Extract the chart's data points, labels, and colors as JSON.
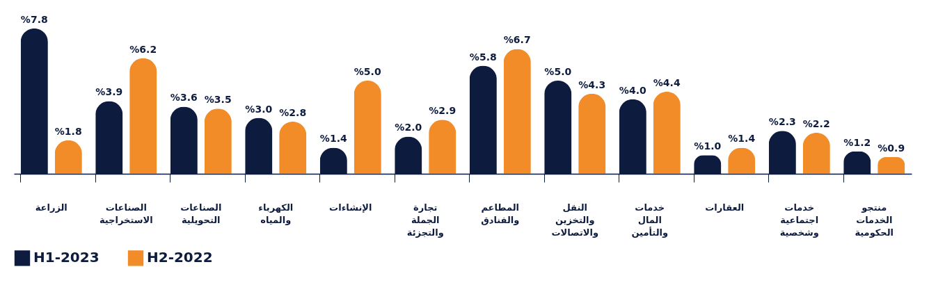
{
  "chart_data": {
    "type": "bar",
    "categories": [
      "الزراعة",
      "الصناعات الاستخراجية",
      "الصناعات التحويلية",
      "الكهرباء والمياه",
      "الإنشاءات",
      "تجارة الجملة والتجزئة",
      "المطاعم والفنادق",
      "النقل والتخزين والاتصالات",
      "خدمات المال والتأمين",
      "العقارات",
      "خدمات اجتماعية وشخصية",
      "منتجو الخدمات الحكومية"
    ],
    "series": [
      {
        "name": "H1-2023",
        "color": "#0d1b3e",
        "values": [
          7.8,
          3.9,
          3.6,
          3.0,
          1.4,
          2.0,
          5.8,
          5.0,
          4.0,
          1.0,
          2.3,
          1.2
        ],
        "value_labels": [
          "%7.8",
          "%3.9",
          "%3.6",
          "%3.0",
          "%1.4",
          "%2.0",
          "%5.8",
          "%5.0",
          "%4.0",
          "%1.0",
          "%2.3",
          "%1.2"
        ]
      },
      {
        "name": "H2-2022",
        "color": "#f28c28",
        "values": [
          1.8,
          6.2,
          3.5,
          2.8,
          5.0,
          2.9,
          6.7,
          4.3,
          4.4,
          1.4,
          2.2,
          0.9
        ],
        "value_labels": [
          "%1.8",
          "%6.2",
          "%3.5",
          "%2.8",
          "%5.0",
          "%2.9",
          "%6.7",
          "%4.3",
          "%4.4",
          "%1.4",
          "%2.2",
          "%0.9"
        ]
      }
    ],
    "legend": "bottom",
    "grid": false
  }
}
